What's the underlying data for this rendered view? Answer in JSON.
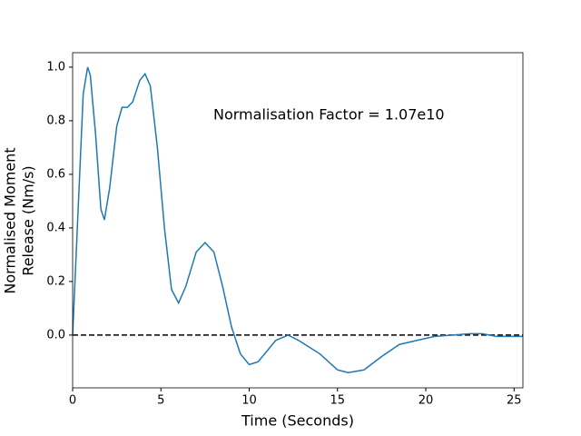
{
  "chart_data": {
    "type": "line",
    "xlabel": "Time (Seconds)",
    "ylabel": [
      "Normalised Moment",
      "Release (Nm/s)"
    ],
    "annotation": "Normalisation Factor = 1.07e10",
    "x": [
      0,
      0.3,
      0.6,
      0.85,
      1.0,
      1.3,
      1.6,
      1.8,
      2.1,
      2.5,
      2.8,
      3.1,
      3.4,
      3.8,
      4.1,
      4.4,
      4.8,
      5.2,
      5.6,
      6.0,
      6.4,
      7.0,
      7.5,
      8.0,
      8.5,
      9.0,
      9.5,
      10.0,
      10.5,
      11.0,
      11.5,
      12.2,
      12.8,
      14.0,
      15.0,
      15.6,
      16.5,
      17.5,
      18.5,
      19.5,
      20.5,
      21.5,
      22.5,
      23.2,
      24.0,
      25.5
    ],
    "series": [
      {
        "color": "#1f77b4",
        "values": [
          0,
          0.45,
          0.9,
          1.0,
          0.97,
          0.75,
          0.47,
          0.43,
          0.55,
          0.78,
          0.85,
          0.85,
          0.87,
          0.95,
          0.975,
          0.93,
          0.7,
          0.4,
          0.17,
          0.12,
          0.18,
          0.31,
          0.345,
          0.31,
          0.18,
          0.03,
          -0.07,
          -0.11,
          -0.1,
          -0.06,
          -0.02,
          0.0,
          -0.02,
          -0.07,
          -0.13,
          -0.14,
          -0.13,
          -0.08,
          -0.035,
          -0.02,
          -0.005,
          0.0,
          0.005,
          0.005,
          -0.005,
          -0.005
        ]
      }
    ],
    "reference_line": 0,
    "xlim": [
      0,
      25.5
    ],
    "ylim": [
      -0.197,
      1.054
    ],
    "xticks": [
      0,
      5,
      10,
      15,
      20,
      25
    ],
    "yticks": [
      {
        "value": 0,
        "label": "0.0"
      },
      0.2,
      0.4,
      0.6,
      0.8,
      {
        "value": 1,
        "label": "1.0"
      }
    ]
  }
}
